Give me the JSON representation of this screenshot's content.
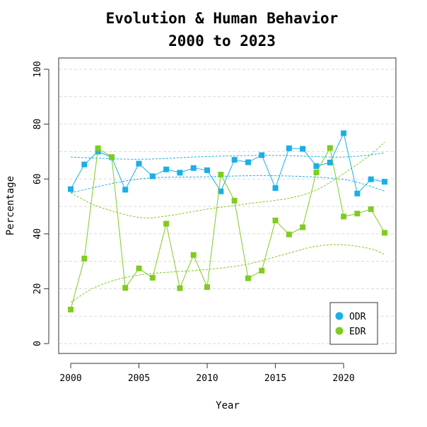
{
  "chart_data": {
    "type": "line",
    "title_line1": "Evolution & Human Behavior",
    "title_line2": "2000 to 2023",
    "xlabel": "Year",
    "ylabel": "Percentage",
    "xlim": [
      2000,
      2023
    ],
    "ylim": [
      0,
      100
    ],
    "x_ticks": [
      "2000",
      "2005",
      "2010",
      "2015",
      "2020"
    ],
    "y_ticks": [
      "0",
      "20",
      "40",
      "60",
      "80",
      "100"
    ],
    "grid": "horizontal dashed",
    "legend_position": "bottom-right",
    "x": [
      2000,
      2001,
      2002,
      2003,
      2004,
      2005,
      2006,
      2007,
      2008,
      2009,
      2010,
      2011,
      2012,
      2013,
      2014,
      2015,
      2016,
      2017,
      2018,
      2019,
      2020,
      2021,
      2022,
      2023
    ],
    "series": [
      {
        "name": "ODR",
        "color": "#1aafe6",
        "values": [
          56.3,
          65.3,
          70.0,
          67.9,
          56.1,
          65.6,
          61.0,
          63.5,
          62.3,
          64.0,
          63.2,
          55.5,
          67.0,
          66.1,
          68.7,
          56.7,
          71.2,
          71.0,
          64.7,
          66.0,
          76.7,
          54.7,
          59.9,
          59.0
        ],
        "band_upper": [
          [
            2000,
            68
          ],
          [
            2005,
            67.2
          ],
          [
            2010,
            68.2
          ],
          [
            2015,
            68.6
          ],
          [
            2020,
            68.0
          ],
          [
            2023,
            69.5
          ]
        ],
        "band_lower": [
          [
            2000,
            55
          ],
          [
            2005,
            60
          ],
          [
            2010,
            60.8
          ],
          [
            2015,
            61.2
          ],
          [
            2020,
            59.8
          ],
          [
            2023,
            55.6
          ]
        ]
      },
      {
        "name": "EDR",
        "color": "#7fcc1f",
        "values": [
          12.4,
          31.0,
          71.2,
          68.0,
          20.3,
          27.4,
          24.0,
          43.7,
          20.2,
          32.3,
          20.6,
          61.6,
          52.1,
          23.8,
          26.6,
          44.9,
          39.8,
          42.4,
          62.4,
          71.3,
          46.3,
          47.4,
          49.0,
          40.4
        ],
        "band_upper": [
          [
            2000,
            55
          ],
          [
            2002,
            50
          ],
          [
            2005,
            46
          ],
          [
            2007,
            46.5
          ],
          [
            2010,
            49
          ],
          [
            2013,
            51
          ],
          [
            2016,
            53
          ],
          [
            2018,
            56
          ],
          [
            2020,
            62
          ],
          [
            2022,
            69
          ],
          [
            2023,
            73.5
          ]
        ],
        "band_lower": [
          [
            2000,
            15
          ],
          [
            2002,
            21
          ],
          [
            2005,
            25
          ],
          [
            2010,
            27
          ],
          [
            2013,
            29
          ],
          [
            2016,
            33
          ],
          [
            2018,
            35.5
          ],
          [
            2020,
            36
          ],
          [
            2022,
            34.5
          ],
          [
            2023,
            32.5
          ]
        ]
      }
    ]
  }
}
